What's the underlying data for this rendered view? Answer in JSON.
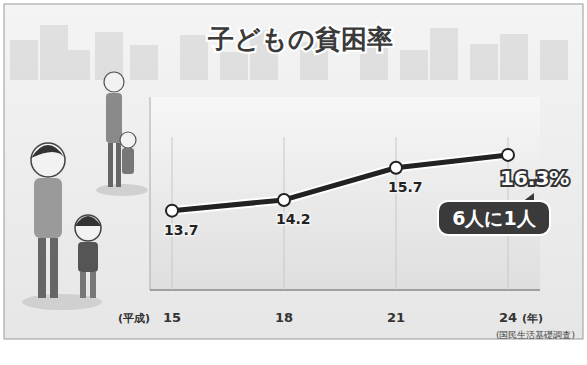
{
  "chart_data": {
    "type": "line",
    "title": "子どもの貧困率",
    "categories": [
      "15",
      "18",
      "21",
      "24"
    ],
    "values": [
      13.7,
      14.2,
      15.7,
      16.3
    ],
    "value_labels": [
      "13.7",
      "14.2",
      "15.7",
      "16.3%"
    ],
    "data_labels": true,
    "era_label": "(平成)",
    "xlabel": "(年)",
    "annotation": "6人に1人",
    "source": "(国民生活基礎調査)",
    "ylim": [
      10,
      19
    ],
    "tick_labels": "x",
    "color": "#222222",
    "marker": "circle"
  }
}
